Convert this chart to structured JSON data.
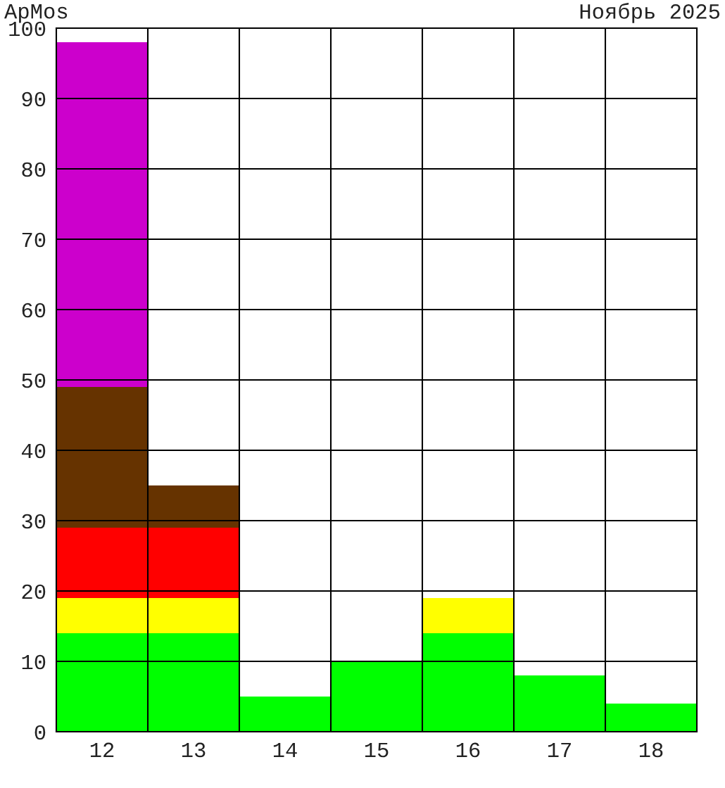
{
  "chart_data": {
    "type": "bar",
    "title": "ApMos",
    "subtitle": "Ноябрь 2025",
    "stacked": true,
    "categories": [
      "12",
      "13",
      "14",
      "15",
      "16",
      "17",
      "18"
    ],
    "series": [
      {
        "color": "#00ff00",
        "values": [
          14,
          14,
          5,
          10,
          14,
          8,
          4
        ]
      },
      {
        "color": "#ffff00",
        "values": [
          5,
          5,
          null,
          null,
          5,
          null,
          null
        ]
      },
      {
        "color": "#ff0000",
        "values": [
          10,
          10,
          null,
          null,
          null,
          null,
          null
        ]
      },
      {
        "color": "#663300",
        "values": [
          20,
          6,
          null,
          null,
          null,
          null,
          null
        ]
      },
      {
        "color": "#cc00cc",
        "values": [
          49,
          null,
          null,
          null,
          null,
          null,
          null
        ]
      }
    ],
    "ylim": [
      0,
      100
    ],
    "yticks": [
      0,
      10,
      20,
      30,
      40,
      50,
      60,
      70,
      80,
      90,
      100
    ],
    "grid": true
  }
}
